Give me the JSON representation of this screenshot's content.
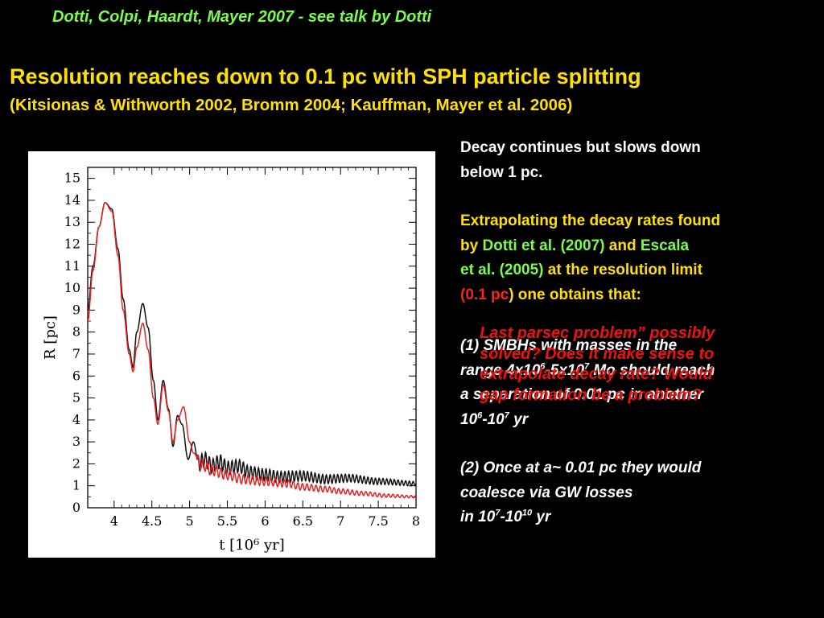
{
  "header": {
    "credit": "Dotti, Colpi, Haardt, Mayer 2007 -  see talk by Dotti"
  },
  "title": {
    "headline": "Resolution reaches down to 0.1 pc with SPH particle splitting",
    "references": "(Kitsionas & Withworth 2002, Bromm 2004; Kauffman, Mayer et al. 2006)"
  },
  "notes": {
    "decay_line1": "Decay continues but slows down",
    "decay_line2": "below 1 pc.",
    "extrap_line1": "Extrapolating the decay rates found",
    "extrap_by": "by ",
    "extrap_ref1": "Dotti et al. (2007)",
    "extrap_and": " and ",
    "extrap_ref2a": "Escala",
    "extrap_ref2b": "et al. (2005)",
    "extrap_at": " at  the resolution limit",
    "extrap_limit": "(0.1 pc",
    "extrap_end": ") one obtains that:",
    "p1_line1": "(1) SMBHs with masses in the",
    "p1_line2a": "range 4x10",
    "p1_exp1": "6",
    "p1_line2b": "-5x10",
    "p1_exp2": "7",
    "p1_line2c": " Mo should reach",
    "p1_line3": "a separation of 0.01 pc in another",
    "p1_line4a": "10",
    "p1_exp3": "6",
    "p1_line4b": "-10",
    "p1_exp4": "7",
    "p1_line4c": " yr",
    "p2_line1": "(2) Once at  a~ 0.01 pc they would",
    "p2_line2": "coalesce via GW losses",
    "p2_line3a": "in 10",
    "p2_exp1": "7",
    "p2_line3b": "-10",
    "p2_exp2": "10",
    "p2_line3c": " yr"
  },
  "overlay_note": {
    "line1": "Last parsec problem” possibly",
    "line2": "solved? Does it make sense to",
    "line3": "extrapolate decay rate? Would",
    "line4": "gap formation be a problem?"
  },
  "colors": {
    "green": "#7CFC4A",
    "yellow": "#FFE000",
    "red": "#EE1111"
  },
  "chart_data": {
    "type": "line",
    "xlabel": "t  [10⁶ yr]",
    "ylabel": "R  [pc]",
    "xlim": [
      3.65,
      8.0
    ],
    "ylim": [
      0,
      15.5
    ],
    "xticks": [
      "4",
      "4.5",
      "5",
      "5.5",
      "6",
      "6.5",
      "7",
      "7.5",
      "8"
    ],
    "yticks": [
      "0",
      "1",
      "2",
      "3",
      "4",
      "5",
      "6",
      "7",
      "8",
      "9",
      "10",
      "11",
      "12",
      "13",
      "14",
      "15"
    ],
    "grid": false,
    "series": [
      {
        "color": "#111111",
        "x": [
          3.65,
          3.72,
          3.8,
          3.88,
          3.97,
          4.05,
          4.12,
          4.2,
          4.25,
          4.3,
          4.38,
          4.45,
          4.52,
          4.58,
          4.65,
          4.72,
          4.78,
          4.84,
          4.9,
          4.98,
          5.05,
          5.12,
          5.2,
          5.3,
          5.4,
          5.5,
          5.65,
          5.8,
          6.0,
          6.2,
          6.5,
          6.8,
          7.1,
          7.5,
          8.0
        ],
        "y": [
          9.0,
          11.0,
          12.8,
          13.9,
          13.6,
          11.8,
          9.5,
          7.2,
          6.4,
          8.0,
          9.3,
          8.2,
          5.8,
          4.0,
          5.8,
          4.5,
          2.8,
          4.2,
          3.8,
          2.2,
          3.0,
          2.0,
          2.2,
          1.9,
          2.1,
          1.8,
          1.9,
          1.6,
          1.5,
          1.4,
          1.45,
          1.3,
          1.35,
          1.2,
          1.1
        ],
        "oscillation": {
          "start": 5.1,
          "period": 0.05,
          "amplitude_start": 0.7,
          "amplitude_end": 0.2
        }
      },
      {
        "color": "#E82020",
        "x": [
          3.65,
          3.72,
          3.8,
          3.88,
          3.97,
          4.05,
          4.12,
          4.2,
          4.25,
          4.3,
          4.38,
          4.45,
          4.52,
          4.58,
          4.65,
          4.72,
          4.78,
          4.84,
          4.92,
          5.0,
          5.05,
          5.15,
          5.3,
          5.5,
          5.7,
          6.0,
          6.3,
          6.5,
          6.8,
          7.0,
          7.3,
          7.6,
          8.0
        ],
        "y": [
          8.5,
          10.8,
          12.8,
          13.9,
          13.5,
          11.5,
          9.0,
          7.0,
          6.2,
          7.3,
          8.4,
          7.2,
          5.0,
          3.8,
          5.6,
          4.4,
          3.0,
          4.0,
          4.6,
          3.0,
          2.5,
          2.0,
          1.7,
          1.5,
          1.3,
          1.2,
          1.1,
          0.95,
          0.85,
          0.75,
          0.65,
          0.55,
          0.5
        ],
        "oscillation": {
          "start": 5.1,
          "period": 0.06,
          "amplitude_start": 0.5,
          "amplitude_end": 0.1
        }
      }
    ]
  }
}
